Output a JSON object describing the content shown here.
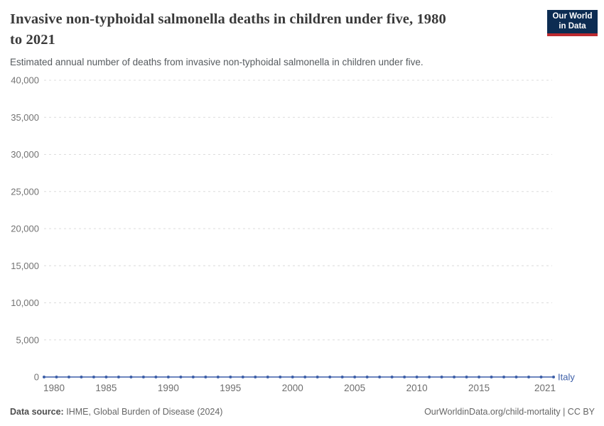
{
  "header": {
    "title": "Invasive non-typhoidal salmonella deaths in children under five, 1980 to 2021",
    "title_line1": "Invasive non-typhoidal salmonella deaths in children under five, 1980",
    "title_line2": "to 2021",
    "subtitle": "Estimated annual number of deaths from invasive non-typhoidal salmonella in children under five."
  },
  "logo": {
    "line1": "Our World",
    "line2": "in Data",
    "bg_color": "#0c2c52",
    "accent_color": "#bc2a30"
  },
  "footer": {
    "datasource_label": "Data source:",
    "datasource_value": "IHME, Global Burden of Disease (2024)",
    "link": "OurWorldinData.org/child-mortality",
    "separator": "|",
    "license": "CC BY"
  },
  "chart_data": {
    "type": "line",
    "title": "Invasive non-typhoidal salmonella deaths in children under five, 1980 to 2021",
    "xlabel": "",
    "ylabel": "",
    "xlim": [
      1980,
      2021
    ],
    "ylim": [
      0,
      40000
    ],
    "xticks": [
      1980,
      1985,
      1990,
      1995,
      2000,
      2005,
      2010,
      2015,
      2021
    ],
    "yticks": [
      0,
      5000,
      10000,
      15000,
      20000,
      25000,
      30000,
      35000,
      40000
    ],
    "grid": "horizontal-dashed",
    "legend_position": "end-of-line",
    "x": [
      1980,
      1981,
      1982,
      1983,
      1984,
      1985,
      1986,
      1987,
      1988,
      1989,
      1990,
      1991,
      1992,
      1993,
      1994,
      1995,
      1996,
      1997,
      1998,
      1999,
      2000,
      2001,
      2002,
      2003,
      2004,
      2005,
      2006,
      2007,
      2008,
      2009,
      2010,
      2011,
      2012,
      2013,
      2014,
      2015,
      2016,
      2017,
      2018,
      2019,
      2020,
      2021
    ],
    "series": [
      {
        "name": "Italy",
        "color": "#3d5fa8",
        "values": [
          0,
          0,
          0,
          0,
          0,
          0,
          0,
          0,
          0,
          0,
          0,
          0,
          0,
          0,
          0,
          0,
          0,
          0,
          0,
          0,
          0,
          0,
          0,
          0,
          0,
          0,
          0,
          0,
          0,
          0,
          0,
          0,
          0,
          0,
          0,
          0,
          0,
          0,
          0,
          0,
          0,
          0
        ]
      }
    ]
  }
}
